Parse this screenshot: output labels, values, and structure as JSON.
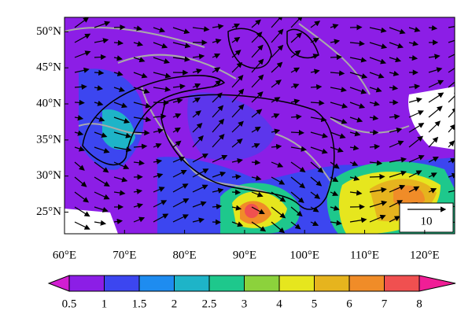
{
  "map": {
    "xlim": [
      60,
      125
    ],
    "ylim": [
      22,
      52
    ],
    "xticks": [
      {
        "value": 60,
        "label": "60°E"
      },
      {
        "value": 70,
        "label": "70°E"
      },
      {
        "value": 80,
        "label": "80°E"
      },
      {
        "value": 90,
        "label": "90°E"
      },
      {
        "value": 100,
        "label": "100°E"
      },
      {
        "value": 110,
        "label": "110°E"
      },
      {
        "value": 120,
        "label": "120°E"
      }
    ],
    "yticks": [
      {
        "value": 25,
        "label": "25°N"
      },
      {
        "value": 30,
        "label": "30°N"
      },
      {
        "value": 35,
        "label": "35°N"
      },
      {
        "value": 40,
        "label": "40°N"
      },
      {
        "value": 45,
        "label": "45°N"
      },
      {
        "value": 50,
        "label": "50°N"
      }
    ],
    "reference_vector": 10
  },
  "colorbar": {
    "levels": [
      0.5,
      1,
      1.5,
      2,
      2.5,
      3,
      4,
      5,
      6,
      7,
      8
    ],
    "colors": [
      "#d21ed2",
      "#8c1ee6",
      "#3c46f0",
      "#1e8cf0",
      "#1eb4c8",
      "#1ec88c",
      "#8cd23c",
      "#e6e61e",
      "#e6b41e",
      "#f08c28",
      "#f05050",
      "#f01e96"
    ]
  }
}
